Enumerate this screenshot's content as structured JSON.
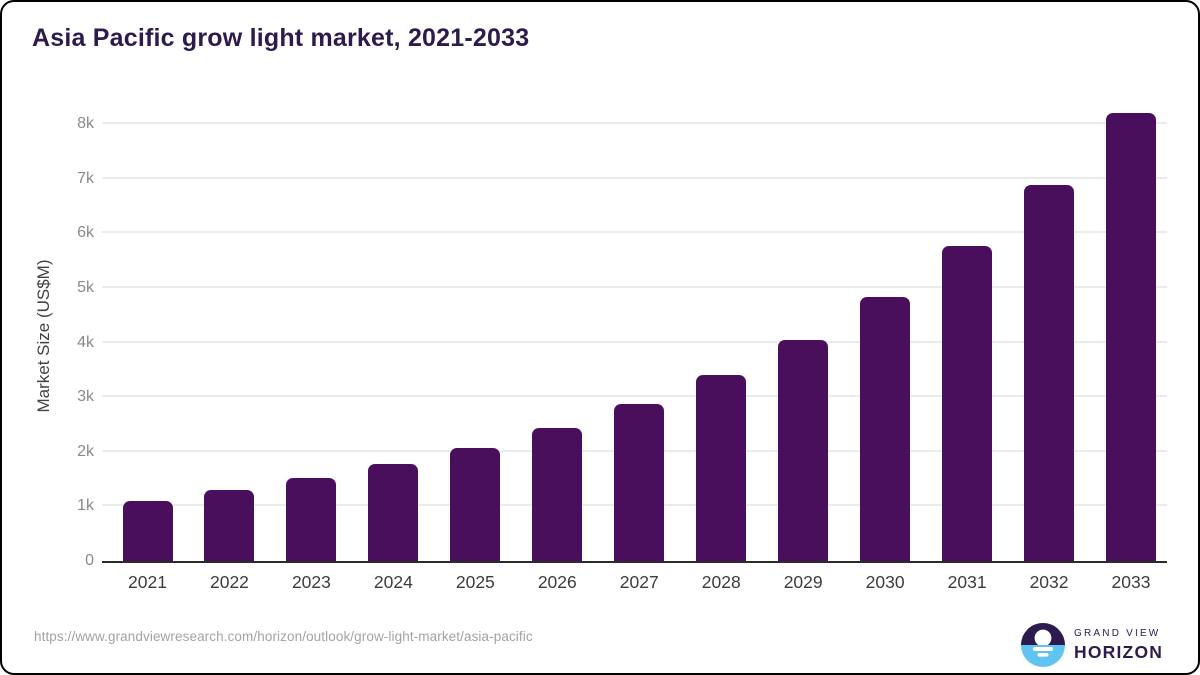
{
  "title": "Asia Pacific grow light market, 2021-2033",
  "footer": {
    "source_url": "https://www.grandviewresearch.com/horizon/outlook/grow-light-market/asia-pacific",
    "logo": {
      "line1": "GRAND VIEW",
      "line2": "HORIZON"
    }
  },
  "colors": {
    "bar": "#4a0f5c",
    "title_text": "#2d1b4e",
    "axis_line": "#2b2b2b",
    "gridline": "#ebebeb",
    "y_tick_label": "#8a8a8a",
    "x_tick_label": "#3c3c3c",
    "url_text": "#a3a3a3",
    "logo_dark": "#2d1b4e",
    "logo_blue": "#5fc5f0"
  },
  "chart_data": {
    "type": "bar",
    "title": "Asia Pacific grow light market, 2021-2033",
    "categories": [
      "2021",
      "2022",
      "2023",
      "2024",
      "2025",
      "2026",
      "2027",
      "2028",
      "2029",
      "2030",
      "2031",
      "2032",
      "2033"
    ],
    "values": [
      1100,
      1300,
      1520,
      1780,
      2070,
      2440,
      2870,
      3400,
      4050,
      4830,
      5770,
      6880,
      8200
    ],
    "unit": "US$M",
    "xlabel": "",
    "ylabel": "Market Size (US$M)",
    "ylim": [
      0,
      8400
    ],
    "ytick_labels": [
      "0",
      "1k",
      "2k",
      "3k",
      "4k",
      "5k",
      "6k",
      "7k",
      "8k"
    ],
    "ytick_values": [
      0,
      1000,
      2000,
      3000,
      4000,
      5000,
      6000,
      7000,
      8000
    ],
    "grid": true,
    "legend": false
  }
}
